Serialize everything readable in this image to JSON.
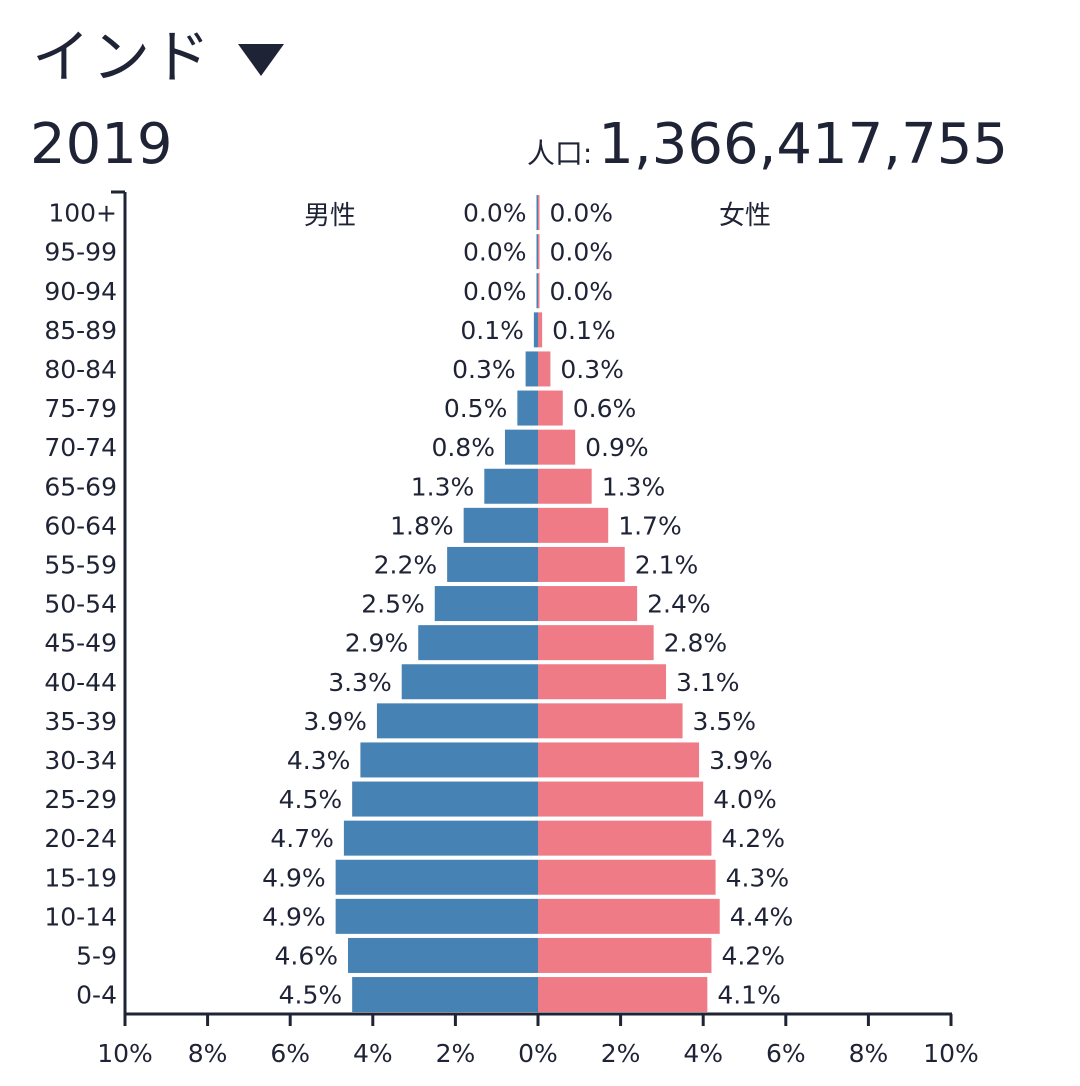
{
  "header": {
    "country": "インド",
    "year": "2019",
    "population_label": "人口:",
    "population_value": "1,366,417,755"
  },
  "chart_data": {
    "type": "bar",
    "orientation": "horizontal",
    "categories": [
      "100+",
      "95-99",
      "90-94",
      "85-89",
      "80-84",
      "75-79",
      "70-74",
      "65-69",
      "60-64",
      "55-59",
      "50-54",
      "45-49",
      "40-44",
      "35-39",
      "30-34",
      "25-29",
      "20-24",
      "15-19",
      "10-14",
      "5-9",
      "0-4"
    ],
    "series": [
      {
        "name": "男性",
        "color": "#4682b4",
        "values": [
          0.0,
          0.0,
          0.0,
          0.1,
          0.3,
          0.5,
          0.8,
          1.3,
          1.8,
          2.2,
          2.5,
          2.9,
          3.3,
          3.9,
          4.3,
          4.5,
          4.7,
          4.9,
          4.9,
          4.6,
          4.5
        ],
        "labels": [
          "0.0%",
          "0.0%",
          "0.0%",
          "0.1%",
          "0.3%",
          "0.5%",
          "0.8%",
          "1.3%",
          "1.8%",
          "2.2%",
          "2.5%",
          "2.9%",
          "3.3%",
          "3.9%",
          "4.3%",
          "4.5%",
          "4.7%",
          "4.9%",
          "4.9%",
          "4.6%",
          "4.5%"
        ]
      },
      {
        "name": "女性",
        "color": "#ef7b87",
        "values": [
          0.0,
          0.0,
          0.0,
          0.1,
          0.3,
          0.6,
          0.9,
          1.3,
          1.7,
          2.1,
          2.4,
          2.8,
          3.1,
          3.5,
          3.9,
          4.0,
          4.2,
          4.3,
          4.4,
          4.2,
          4.1
        ],
        "labels": [
          "0.0%",
          "0.0%",
          "0.0%",
          "0.1%",
          "0.3%",
          "0.6%",
          "0.9%",
          "1.3%",
          "1.7%",
          "2.1%",
          "2.4%",
          "2.8%",
          "3.1%",
          "3.5%",
          "3.9%",
          "4.0%",
          "4.2%",
          "4.3%",
          "4.4%",
          "4.2%",
          "4.1%"
        ]
      }
    ],
    "xticks": [
      "10%",
      "8%",
      "6%",
      "4%",
      "2%",
      "0%",
      "2%",
      "4%",
      "6%",
      "8%",
      "10%"
    ],
    "xlim": [
      -10,
      10
    ]
  }
}
